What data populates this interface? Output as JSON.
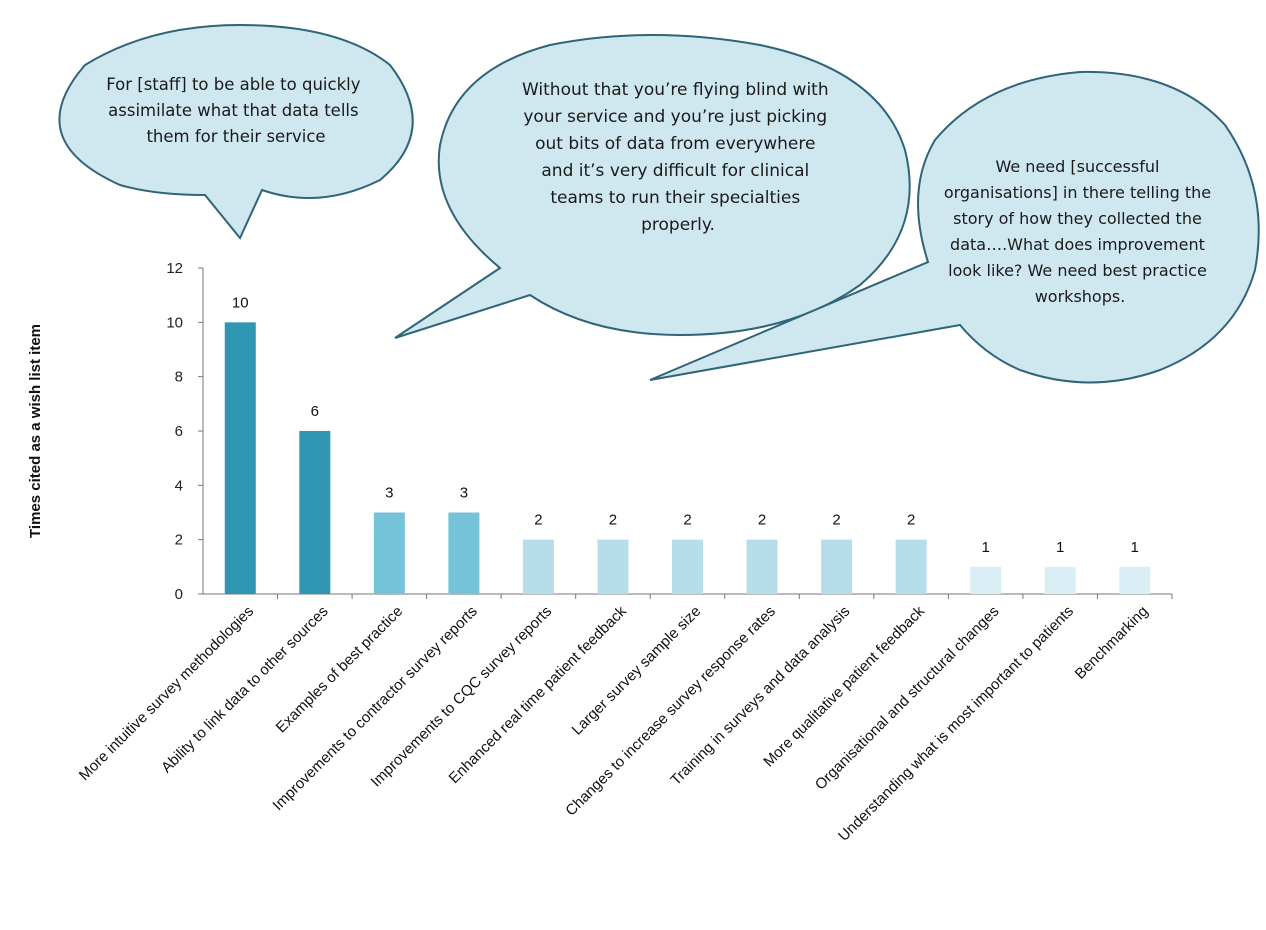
{
  "chart_data": {
    "type": "bar",
    "categories": [
      "More intuitive survey methodologies",
      "Ability to link data to other sources",
      "Examples of best practice",
      "Improvements to contractor survey reports",
      "Improvements to CQC survey reports",
      "Enhanced real time patient feedback",
      "Larger survey sample size",
      "Changes to increase survey response rates",
      "Training in surveys and data analysis",
      "More qualitative patient feedback",
      "Organisational and structural changes",
      "Understanding what is most important to patients",
      "Benchmarking"
    ],
    "values": [
      10,
      6,
      3,
      3,
      2,
      2,
      2,
      2,
      2,
      2,
      1,
      1,
      1
    ],
    "bar_colors": [
      "#2f97b4",
      "#2f97b4",
      "#74c3d9",
      "#74c3d9",
      "#b5deea",
      "#b5deea",
      "#b5deea",
      "#b5deea",
      "#b5deea",
      "#b5deea",
      "#d9eef5",
      "#d9eef5",
      "#d9eef5"
    ],
    "ylabel": "Times cited as a wish list item",
    "xlabel": "",
    "ylim": [
      0,
      12
    ],
    "yticks": [
      0,
      2,
      4,
      6,
      8,
      10,
      12
    ],
    "grid": false,
    "legend": "none",
    "annotations": [
      {
        "id": "quote-staff",
        "lines": [
          "For [staff] to be able to quickly",
          "assimilate what that data tells",
          "them for their service"
        ]
      },
      {
        "id": "quote-flying-blind",
        "lines": [
          "Without that you’re flying blind with",
          "your service and you’re just picking",
          "out bits of data from everywhere",
          "and it’s very difficult for clinical",
          "teams to run their specialties",
          "properly."
        ]
      },
      {
        "id": "quote-best-practice",
        "lines": [
          "We need [successful",
          "organisations] in there telling the",
          "story of how they collected the",
          "data….What does improvement",
          "look like? We need best practice",
          "workshops."
        ]
      }
    ]
  }
}
